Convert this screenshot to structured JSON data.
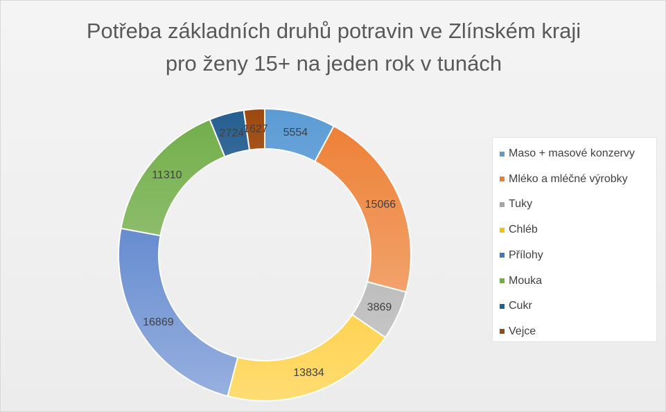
{
  "chart_data": {
    "type": "pie",
    "subtype": "doughnut",
    "title_lines": [
      "Potřeba základních druhů potravin ve Zlínském kraji",
      "pro ženy 15+ na jeden rok v tunách"
    ],
    "categories": [
      "Maso + masové konzervy",
      "Mléko a mléčné výrobky",
      "Tuky",
      "Chléb",
      "Přílohy",
      "Mouka",
      "Cukr",
      "Vejce"
    ],
    "values": [
      5554,
      15066,
      3869,
      13834,
      16869,
      11310,
      2724,
      1627
    ],
    "data_labels": [
      "5554",
      "15066",
      "3869",
      "13834",
      "16869",
      "11310",
      "2724",
      "1627"
    ],
    "colors": [
      "#5b9bd5",
      "#ed7d31",
      "#a5a5a5",
      "#ffc000",
      "#4472c4",
      "#70ad47",
      "#255e91",
      "#9e480e"
    ],
    "legend_position": "right"
  }
}
